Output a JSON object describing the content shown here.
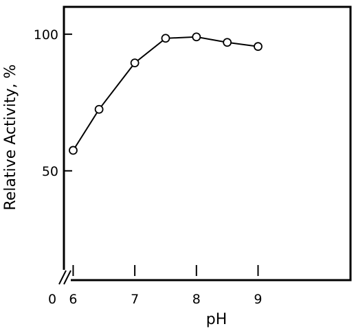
{
  "chart_data": {
    "type": "line",
    "title": "",
    "xlabel": "pH",
    "ylabel": "Relative Activity, %",
    "x_origin_label": "0",
    "xlim": [
      5.85,
      10.5
    ],
    "ylim": [
      10,
      110
    ],
    "x_ticks": [
      6,
      7,
      8,
      9
    ],
    "x_tick_labels": [
      "6",
      "7",
      "8",
      "9"
    ],
    "y_ticks": [
      50,
      100
    ],
    "y_tick_labels": [
      "50",
      "100"
    ],
    "axis_break": true,
    "grid": false,
    "legend": "none",
    "series": [
      {
        "x": [
          6.0,
          6.42,
          7.0,
          7.5,
          8.0,
          8.5,
          9.0
        ],
        "y": [
          57.5,
          72.5,
          89.5,
          98.5,
          99.0,
          97.0,
          95.5
        ],
        "marker": "open-circle",
        "color": "#000000"
      }
    ]
  }
}
